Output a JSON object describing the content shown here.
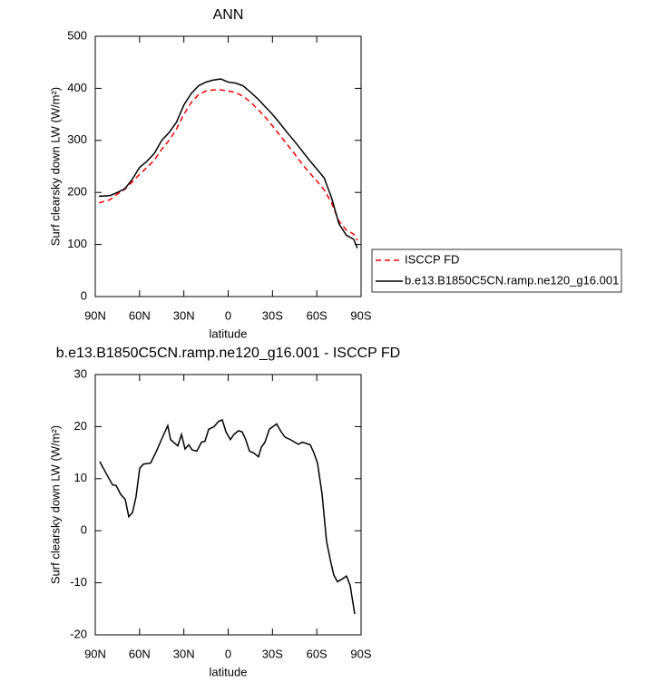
{
  "chart_data": [
    {
      "type": "line",
      "title": "ANN",
      "xlabel": "latitude",
      "ylabel": "Surf clearsky down LW (W/m²)",
      "xlim": [
        90,
        -90
      ],
      "xticks": [
        {
          "value": 90,
          "label": "90N"
        },
        {
          "value": 60,
          "label": "60N"
        },
        {
          "value": 30,
          "label": "30N"
        },
        0,
        {
          "value": -30,
          "label": "30S"
        },
        {
          "value": -60,
          "label": "60S"
        },
        {
          "value": -90,
          "label": "90S"
        }
      ],
      "ylim": [
        0,
        500
      ],
      "yticks": [
        0,
        100,
        200,
        300,
        400,
        500
      ],
      "legend": "right",
      "x": [
        87.5,
        85,
        80,
        75,
        70,
        65,
        60,
        55,
        50,
        45,
        40,
        35,
        30,
        25,
        20,
        15,
        10,
        5,
        0,
        -5,
        -10,
        -15,
        -20,
        -25,
        -30,
        -35,
        -40,
        -45,
        -50,
        -55,
        -60,
        -65,
        -70,
        -75,
        -80,
        -85,
        -87.5
      ],
      "series": [
        {
          "name": "ISCCP FD",
          "color": "#ff0000",
          "linestyle": "dashed",
          "values": [
            180,
            182,
            186,
            197,
            206,
            220,
            235,
            248,
            262,
            283,
            300,
            322,
            350,
            373,
            388,
            395,
            397,
            397,
            395,
            392,
            385,
            374,
            360,
            345,
            328,
            310,
            292,
            274,
            255,
            238,
            222,
            205,
            180,
            145,
            128,
            120,
            108
          ]
        },
        {
          "name": "b.e13.B1850C5CN.ramp.ne120_g16.001",
          "color": "#000000",
          "linestyle": "solid",
          "values": [
            193,
            193,
            194,
            200,
            207,
            225,
            248,
            260,
            275,
            300,
            315,
            335,
            368,
            390,
            405,
            412,
            416,
            418,
            412,
            410,
            405,
            393,
            380,
            365,
            350,
            333,
            315,
            298,
            280,
            262,
            245,
            228,
            190,
            140,
            118,
            110,
            93
          ]
        }
      ]
    },
    {
      "type": "line",
      "title": "b.e13.B1850C5CN.ramp.ne120_g16.001 - ISCCP FD",
      "xlabel": "latitude",
      "ylabel": "Surf clearsky down LW (W/m²)",
      "xlim": [
        90,
        -90
      ],
      "xticks": [
        {
          "value": 90,
          "label": "90N"
        },
        {
          "value": 60,
          "label": "60N"
        },
        {
          "value": 30,
          "label": "30N"
        },
        0,
        {
          "value": -30,
          "label": "30S"
        },
        {
          "value": -60,
          "label": "60S"
        },
        {
          "value": -90,
          "label": "90S"
        }
      ],
      "ylim": [
        -20,
        30
      ],
      "yticks": [
        -20,
        -10,
        0,
        10,
        20,
        30
      ],
      "x": [
        87,
        82.6,
        78.3,
        75.9,
        72.8,
        69.7,
        67.3,
        64.8,
        62.4,
        59.9,
        57.4,
        52.5,
        48.2,
        45.2,
        40.9,
        39,
        34.1,
        31.6,
        29.2,
        26.7,
        24.3,
        21.2,
        18.1,
        15.7,
        13.2,
        9.5,
        6.5,
        4,
        1.5,
        -1.5,
        -3.9,
        -7,
        -9.5,
        -11.9,
        -14.4,
        -17.5,
        -20.5,
        -22.4,
        -24.9,
        -27.9,
        -30.4,
        -32.8,
        -35.9,
        -38.4,
        -42.1,
        -45.1,
        -47.6,
        -50.1,
        -52.5,
        -55.6,
        -58,
        -60.5,
        -63.6,
        -66.6,
        -69.1,
        -71.5,
        -74,
        -77.1,
        -80.1,
        -82.6,
        -85.7
      ],
      "color": "#000000",
      "values": [
        13.3,
        11,
        8.8,
        8.7,
        7,
        6,
        2.7,
        3.5,
        6.5,
        12,
        12.8,
        13,
        15.5,
        17.5,
        20.2,
        17.5,
        16.3,
        18.5,
        15.7,
        16.5,
        15.5,
        15.3,
        17,
        17.2,
        19.5,
        20,
        21,
        21.3,
        19,
        17.5,
        18.5,
        19.2,
        19,
        17.5,
        15.3,
        14.9,
        14.2,
        16,
        17,
        19.5,
        20,
        20.5,
        19,
        18,
        17.5,
        17,
        16.6,
        17,
        16.8,
        16.5,
        15,
        13,
        7,
        -2,
        -5.5,
        -8.5,
        -9.8,
        -9.3,
        -8.7,
        -10.5,
        -16
      ]
    }
  ]
}
